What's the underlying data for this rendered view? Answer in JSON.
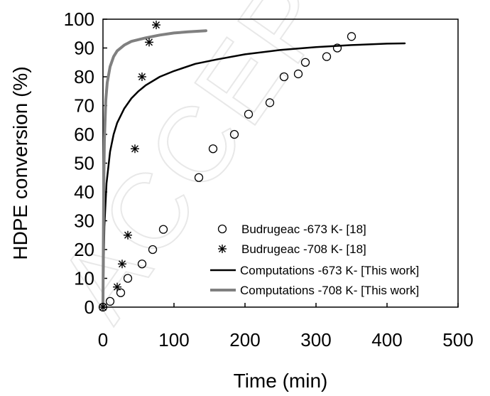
{
  "watermark": "ACCEPTED MANUSCRIPT",
  "chart_data": {
    "type": "scatter",
    "xlabel": "Time (min)",
    "ylabel": "HDPE conversion (%)",
    "xlim": [
      0,
      500
    ],
    "ylim": [
      0,
      100
    ],
    "xticks": [
      "0",
      "100",
      "200",
      "300",
      "400",
      "500"
    ],
    "yticks": [
      "0",
      "10",
      "20",
      "30",
      "40",
      "50",
      "60",
      "70",
      "80",
      "90",
      "100"
    ],
    "grid": false,
    "legend_position": "bottom-right",
    "series": [
      {
        "name": "Budrugeac -673 K- [18]",
        "kind": "scatter",
        "marker": "circle",
        "color": "#000000",
        "x": [
          0,
          10,
          25,
          35,
          55,
          70,
          85,
          135,
          155,
          185,
          205,
          235,
          255,
          275,
          285,
          315,
          330,
          350
        ],
        "y": [
          0,
          2,
          5,
          10,
          15,
          20,
          27,
          45,
          55,
          60,
          67,
          71,
          80,
          81,
          85,
          87,
          90,
          94
        ]
      },
      {
        "name": "Budrugeac -708 K- [18]",
        "kind": "scatter",
        "marker": "asterisk",
        "color": "#000000",
        "x": [
          0,
          20,
          27,
          35,
          45,
          55,
          65,
          75
        ],
        "y": [
          0,
          7,
          15,
          25,
          55,
          80,
          92,
          98
        ]
      },
      {
        "name": "Computations -673 K- [This work]",
        "kind": "line",
        "color": "#000000",
        "x": [
          0,
          2,
          5,
          10,
          15,
          20,
          30,
          40,
          50,
          60,
          80,
          100,
          130,
          160,
          200,
          250,
          300,
          350,
          400,
          425
        ],
        "y": [
          0,
          28,
          43,
          54,
          60,
          64,
          69,
          72.5,
          75,
          77,
          80,
          82,
          84.5,
          86,
          87.8,
          89.3,
          90.3,
          91,
          91.5,
          91.6
        ]
      },
      {
        "name": "Computations -708 K- [This work]",
        "kind": "line",
        "color": "#808080",
        "x": [
          0,
          1,
          2,
          4,
          6,
          10,
          15,
          20,
          30,
          40,
          60,
          80,
          100,
          120,
          145
        ],
        "y": [
          0,
          40,
          58,
          72,
          78,
          83.5,
          87,
          89,
          91,
          92.3,
          93.5,
          94.5,
          95.2,
          95.6,
          96
        ]
      }
    ]
  }
}
